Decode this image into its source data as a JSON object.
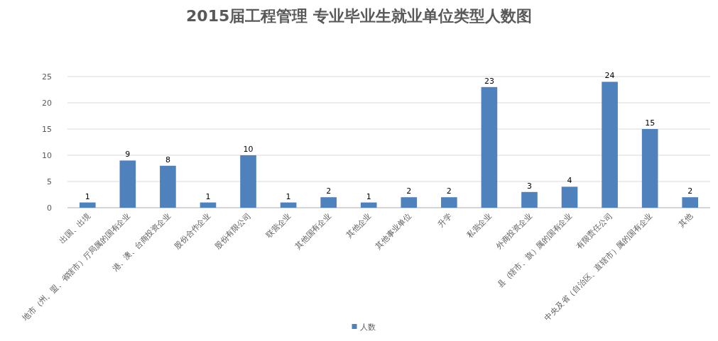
{
  "chart_data": {
    "type": "bar",
    "title": "2015届工程管理 专业毕业生就业单位类型人数图",
    "categories": [
      "出国、出境",
      "地市（州、盟、省辖市）厅局属的国有企业",
      "港、澳、台商投资企业",
      "股份合作企业",
      "股份有限公司",
      "联营企业",
      "其他国有企业",
      "其他企业",
      "其他事业单位",
      "升学",
      "私营企业",
      "外商投资企业",
      "县（辖市、旗）属的国有企业",
      "有限责任公司",
      "中央及省（自治区、直辖市）属的国有企业",
      "其他"
    ],
    "series": [
      {
        "name": "人数",
        "color": "#4f81bd",
        "values": [
          1,
          9,
          8,
          1,
          10,
          1,
          2,
          1,
          2,
          2,
          23,
          3,
          4,
          24,
          15,
          2
        ]
      }
    ],
    "ylim": [
      0,
      25
    ],
    "yticks": [
      0,
      5,
      10,
      15,
      20,
      25
    ],
    "grid": "y",
    "legend": "bottom",
    "data_labels": true
  }
}
